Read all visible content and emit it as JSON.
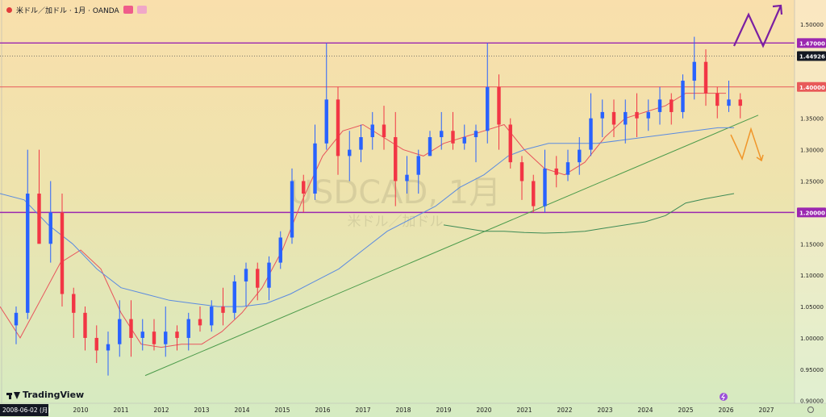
{
  "header": {
    "title": "米ドル／加ドル · 1月 · OANDA"
  },
  "watermark": {
    "symbol": "USDCAD, 1月",
    "name": "米ドル／加ドル"
  },
  "branding": {
    "name": "TradingView"
  },
  "date_label": "2008-06-02 (月)",
  "colors": {
    "up_candle": "#2962ff",
    "down_candle": "#f23645",
    "ma_short": "#e8545c",
    "ma_mid": "#5b8be0",
    "ma_long": "#3d8a55",
    "horizontal_lines": "#9b27b0",
    "red_line": "#e85a5a",
    "trendline": "#4a9a4a",
    "bullish_arrow": "#7b1fa2",
    "bearish_arrow": "#f0962a"
  },
  "chart_data": {
    "type": "candlestick",
    "symbol": "USDCAD",
    "timeframe": "1月",
    "x_axis": {
      "tick_labels": [
        "2010",
        "2011",
        "2012",
        "2013",
        "2014",
        "2015",
        "2016",
        "2017",
        "2018",
        "2019",
        "2020",
        "2021",
        "2022",
        "2023",
        "2024",
        "2025",
        "2026",
        "2027"
      ],
      "start_year": 2008.0,
      "end_year": 2027.7
    },
    "y_axis": {
      "tick_labels": [
        "1.50000",
        "1.45000",
        "1.40000",
        "1.35000",
        "1.30000",
        "1.25000",
        "1.20000",
        "1.15000",
        "1.10000",
        "1.05000",
        "1.00000",
        "0.95000",
        "0.90000"
      ],
      "range": [
        0.8958,
        1.5386
      ],
      "scale": "linear",
      "position": "right"
    },
    "price_labels": [
      {
        "value": 1.47,
        "text": "1.47000",
        "style": "purple"
      },
      {
        "value": 1.44926,
        "text": "1.44926",
        "style": "dark"
      },
      {
        "value": 1.4,
        "text": "1.40000",
        "style": "red"
      },
      {
        "value": 1.2,
        "text": "1.20000",
        "style": "purple"
      }
    ],
    "horizontal_lines": [
      {
        "value": 1.47,
        "color": "purple"
      },
      {
        "value": 1.44926,
        "style": "dotted"
      },
      {
        "value": 1.4,
        "color": "red"
      },
      {
        "value": 1.2,
        "color": "purple"
      }
    ],
    "trendline": {
      "from": [
        2011.6,
        0.94
      ],
      "to": [
        2026.8,
        1.355
      ]
    },
    "moving_averages": [
      {
        "color": "red",
        "points": [
          [
            2008.0,
            1.05
          ],
          [
            2008.5,
            1.0
          ],
          [
            2009.0,
            1.06
          ],
          [
            2009.5,
            1.12
          ],
          [
            2010.0,
            1.14
          ],
          [
            2010.5,
            1.11
          ],
          [
            2011.0,
            1.04
          ],
          [
            2011.5,
            0.99
          ],
          [
            2012.0,
            0.985
          ],
          [
            2012.5,
            0.99
          ],
          [
            2013.0,
            0.99
          ],
          [
            2013.5,
            1.01
          ],
          [
            2014.0,
            1.04
          ],
          [
            2014.5,
            1.08
          ],
          [
            2015.0,
            1.14
          ],
          [
            2015.5,
            1.22
          ],
          [
            2016.0,
            1.29
          ],
          [
            2016.5,
            1.33
          ],
          [
            2017.0,
            1.34
          ],
          [
            2017.5,
            1.32
          ],
          [
            2018.0,
            1.3
          ],
          [
            2018.5,
            1.29
          ],
          [
            2019.0,
            1.31
          ],
          [
            2019.5,
            1.32
          ],
          [
            2020.0,
            1.33
          ],
          [
            2020.5,
            1.34
          ],
          [
            2021.0,
            1.3
          ],
          [
            2021.5,
            1.27
          ],
          [
            2022.0,
            1.26
          ],
          [
            2022.5,
            1.28
          ],
          [
            2023.0,
            1.32
          ],
          [
            2023.5,
            1.35
          ],
          [
            2024.0,
            1.36
          ],
          [
            2024.5,
            1.37
          ],
          [
            2025.0,
            1.39
          ],
          [
            2025.5,
            1.39
          ],
          [
            2026.0,
            1.39
          ]
        ]
      },
      {
        "color": "blue",
        "points": [
          [
            2008.0,
            1.23
          ],
          [
            2008.6,
            1.22
          ],
          [
            2009.2,
            1.18
          ],
          [
            2009.8,
            1.15
          ],
          [
            2010.4,
            1.11
          ],
          [
            2011.0,
            1.08
          ],
          [
            2011.6,
            1.07
          ],
          [
            2012.2,
            1.06
          ],
          [
            2012.8,
            1.055
          ],
          [
            2013.4,
            1.05
          ],
          [
            2014.0,
            1.05
          ],
          [
            2014.6,
            1.055
          ],
          [
            2015.2,
            1.07
          ],
          [
            2015.8,
            1.09
          ],
          [
            2016.4,
            1.11
          ],
          [
            2017.0,
            1.14
          ],
          [
            2017.6,
            1.17
          ],
          [
            2018.2,
            1.19
          ],
          [
            2018.8,
            1.21
          ],
          [
            2019.4,
            1.24
          ],
          [
            2020.0,
            1.26
          ],
          [
            2020.6,
            1.29
          ],
          [
            2021.0,
            1.3
          ],
          [
            2021.6,
            1.31
          ],
          [
            2022.2,
            1.31
          ],
          [
            2022.8,
            1.31
          ],
          [
            2023.4,
            1.315
          ],
          [
            2024.0,
            1.32
          ],
          [
            2024.6,
            1.325
          ],
          [
            2025.2,
            1.33
          ],
          [
            2025.8,
            1.335
          ],
          [
            2026.2,
            1.335
          ]
        ]
      },
      {
        "color": "green",
        "points": [
          [
            2019.0,
            1.18
          ],
          [
            2019.5,
            1.175
          ],
          [
            2020.0,
            1.17
          ],
          [
            2020.5,
            1.17
          ],
          [
            2021.0,
            1.168
          ],
          [
            2021.5,
            1.167
          ],
          [
            2022.0,
            1.168
          ],
          [
            2022.5,
            1.17
          ],
          [
            2023.0,
            1.175
          ],
          [
            2023.5,
            1.18
          ],
          [
            2024.0,
            1.185
          ],
          [
            2024.5,
            1.195
          ],
          [
            2025.0,
            1.215
          ],
          [
            2025.5,
            1.222
          ],
          [
            2026.2,
            1.23
          ]
        ]
      }
    ],
    "candles_quarterly_ohlc": [
      [
        1.02,
        1.05,
        0.99,
        1.04
      ],
      [
        1.04,
        1.3,
        1.03,
        1.23
      ],
      [
        1.23,
        1.3,
        1.15,
        1.15
      ],
      [
        1.15,
        1.25,
        1.12,
        1.2
      ],
      [
        1.2,
        1.23,
        1.05,
        1.07
      ],
      [
        1.07,
        1.08,
        1.0,
        1.04
      ],
      [
        1.04,
        1.05,
        0.98,
        1.0
      ],
      [
        1.0,
        1.02,
        0.96,
        0.98
      ],
      [
        0.98,
        1.01,
        0.94,
        0.99
      ],
      [
        0.99,
        1.06,
        0.97,
        1.03
      ],
      [
        1.03,
        1.06,
        0.97,
        1.0
      ],
      [
        1.0,
        1.03,
        0.98,
        1.01
      ],
      [
        1.01,
        1.03,
        0.98,
        0.99
      ],
      [
        0.99,
        1.05,
        0.97,
        1.01
      ],
      [
        1.01,
        1.02,
        0.98,
        1.0
      ],
      [
        1.0,
        1.04,
        0.98,
        1.03
      ],
      [
        1.03,
        1.05,
        1.01,
        1.02
      ],
      [
        1.02,
        1.06,
        1.01,
        1.05
      ],
      [
        1.05,
        1.08,
        1.02,
        1.04
      ],
      [
        1.04,
        1.1,
        1.03,
        1.09
      ],
      [
        1.09,
        1.12,
        1.05,
        1.11
      ],
      [
        1.11,
        1.12,
        1.06,
        1.08
      ],
      [
        1.08,
        1.13,
        1.06,
        1.12
      ],
      [
        1.12,
        1.17,
        1.11,
        1.16
      ],
      [
        1.16,
        1.27,
        1.15,
        1.25
      ],
      [
        1.25,
        1.26,
        1.2,
        1.23
      ],
      [
        1.23,
        1.34,
        1.22,
        1.31
      ],
      [
        1.31,
        1.47,
        1.3,
        1.38
      ],
      [
        1.38,
        1.4,
        1.26,
        1.29
      ],
      [
        1.29,
        1.33,
        1.25,
        1.3
      ],
      [
        1.3,
        1.34,
        1.28,
        1.32
      ],
      [
        1.32,
        1.36,
        1.3,
        1.34
      ],
      [
        1.34,
        1.37,
        1.3,
        1.32
      ],
      [
        1.32,
        1.36,
        1.21,
        1.25
      ],
      [
        1.25,
        1.29,
        1.23,
        1.26
      ],
      [
        1.26,
        1.3,
        1.23,
        1.29
      ],
      [
        1.29,
        1.33,
        1.29,
        1.32
      ],
      [
        1.32,
        1.36,
        1.3,
        1.33
      ],
      [
        1.33,
        1.36,
        1.3,
        1.31
      ],
      [
        1.31,
        1.34,
        1.3,
        1.32
      ],
      [
        1.32,
        1.34,
        1.28,
        1.33
      ],
      [
        1.33,
        1.47,
        1.31,
        1.4
      ],
      [
        1.4,
        1.42,
        1.3,
        1.34
      ],
      [
        1.34,
        1.35,
        1.27,
        1.28
      ],
      [
        1.28,
        1.29,
        1.22,
        1.25
      ],
      [
        1.25,
        1.26,
        1.2,
        1.21
      ],
      [
        1.21,
        1.3,
        1.2,
        1.27
      ],
      [
        1.27,
        1.29,
        1.24,
        1.26
      ],
      [
        1.26,
        1.3,
        1.25,
        1.28
      ],
      [
        1.28,
        1.32,
        1.26,
        1.3
      ],
      [
        1.3,
        1.39,
        1.29,
        1.35
      ],
      [
        1.35,
        1.38,
        1.32,
        1.36
      ],
      [
        1.36,
        1.38,
        1.32,
        1.34
      ],
      [
        1.34,
        1.38,
        1.31,
        1.36
      ],
      [
        1.36,
        1.39,
        1.32,
        1.35
      ],
      [
        1.35,
        1.38,
        1.33,
        1.36
      ],
      [
        1.36,
        1.4,
        1.34,
        1.38
      ],
      [
        1.38,
        1.39,
        1.34,
        1.36
      ],
      [
        1.36,
        1.42,
        1.35,
        1.41
      ],
      [
        1.41,
        1.48,
        1.38,
        1.44
      ],
      [
        1.44,
        1.46,
        1.37,
        1.39
      ],
      [
        1.39,
        1.4,
        1.35,
        1.37
      ],
      [
        1.37,
        1.41,
        1.36,
        1.38
      ],
      [
        1.38,
        1.39,
        1.35,
        1.37
      ]
    ]
  }
}
